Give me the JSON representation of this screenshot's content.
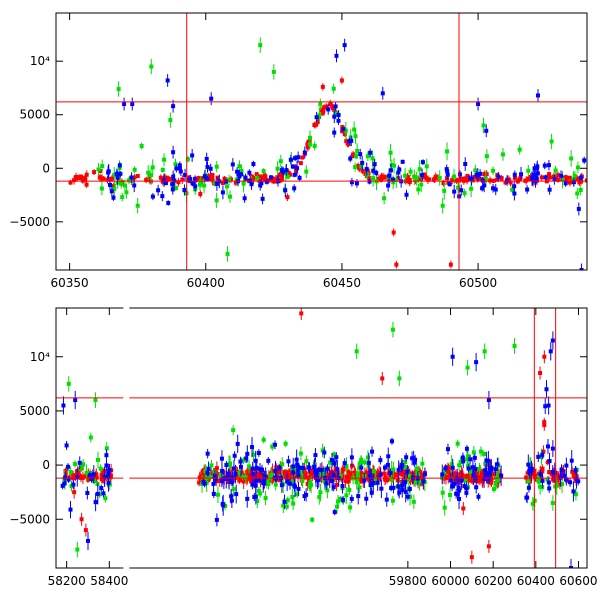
{
  "figure": {
    "description": ""
  },
  "chart_data": [
    {
      "type": "scatter",
      "panel": "top",
      "xlim": [
        60345,
        60540
      ],
      "ylim": [
        -9500,
        14500
      ],
      "xticks": [
        60350,
        60400,
        60450,
        60500
      ],
      "xtick_labels": [
        "60350",
        "60400",
        "60450",
        "60500"
      ],
      "yticks": [
        -5000,
        0,
        5000,
        10000
      ],
      "ytick_labels": [
        "−5000",
        "0",
        "5000",
        "10⁴"
      ],
      "hlines": [
        6200,
        -1200
      ],
      "vlines": [
        60393,
        60493
      ],
      "series": [
        {
          "color": "#ff0000",
          "seed": 11,
          "n": 240,
          "noise": 350,
          "errbar": 300,
          "bands": [
            [
              60348,
              60540,
              1
            ]
          ],
          "outliers": [
            [
              60469,
              -6000
            ],
            [
              60470,
              -9000
            ],
            [
              60490,
              -9000
            ],
            [
              60450,
              8200
            ],
            [
              60443,
              7600
            ],
            [
              60398,
              -2400
            ],
            [
              60430,
              -2700
            ]
          ]
        },
        {
          "color": "#00e000",
          "seed": 22,
          "n": 110,
          "noise": 1200,
          "errbar": 600,
          "bands": [
            [
              60360,
              60540,
              1
            ]
          ],
          "outliers": [
            [
              60368,
              7400
            ],
            [
              60380,
              9500
            ],
            [
              60420,
              11500
            ],
            [
              60425,
              9000
            ],
            [
              60387,
              4500
            ],
            [
              60375,
              -3500
            ],
            [
              60404,
              -3000
            ],
            [
              60408,
              -8000
            ],
            [
              60487,
              -3500
            ],
            [
              60502,
              4000
            ],
            [
              60527,
              2500
            ],
            [
              60455,
              3000
            ],
            [
              60535,
              -1000
            ]
          ]
        },
        {
          "color": "#0000ff",
          "seed": 33,
          "n": 150,
          "noise": 900,
          "errbar": 500,
          "bands": [
            [
              60362,
              60540,
              1
            ]
          ],
          "outliers": [
            [
              60370,
              6000
            ],
            [
              60373,
              6000
            ],
            [
              60386,
              8200
            ],
            [
              60388,
              5800
            ],
            [
              60402,
              6500
            ],
            [
              60448,
              10500
            ],
            [
              60451,
              11500
            ],
            [
              60465,
              7000
            ],
            [
              60500,
              6000
            ],
            [
              60503,
              3500
            ],
            [
              60522,
              6800
            ],
            [
              60537,
              -3800
            ],
            [
              60538,
              -9500
            ],
            [
              60388,
              1500
            ],
            [
              60395,
              1200
            ]
          ]
        }
      ]
    },
    {
      "type": "scatter",
      "panel": "bottom",
      "xlim": [
        58150,
        60640
      ],
      "ylim": [
        -9500,
        14500
      ],
      "xticks": [
        58200,
        58400,
        59800,
        60000,
        60200,
        60400,
        60600
      ],
      "xtick_labels": [
        "58200",
        "58400",
        "59800",
        "60000",
        "60200",
        "60400",
        "60600"
      ],
      "yticks": [
        -5000,
        0,
        5000,
        10000
      ],
      "ytick_labels": [
        "−5000",
        "0",
        "5000",
        "10⁴"
      ],
      "hlines": [
        6200,
        -1200
      ],
      "vlines": [
        60393,
        60493
      ],
      "series": [
        {
          "color": "#ff0000",
          "seed": 44,
          "n": 500,
          "noise": 500,
          "errbar": 500,
          "bands": [
            [
              58180,
              58410,
              1
            ],
            [
              58820,
              59880,
              1.4
            ],
            [
              59960,
              60240,
              1.5
            ],
            [
              60350,
              60600,
              1
            ]
          ],
          "outliers": [
            [
              58235,
              -2500
            ],
            [
              58270,
              -5000
            ],
            [
              58290,
              -6000
            ],
            [
              59300,
              14000
            ],
            [
              59680,
              8000
            ],
            [
              60060,
              -4000
            ],
            [
              60100,
              -8500
            ],
            [
              60180,
              -7500
            ],
            [
              60420,
              8500
            ],
            [
              60440,
              10000
            ]
          ]
        },
        {
          "color": "#00e000",
          "seed": 55,
          "n": 180,
          "noise": 1800,
          "errbar": 600,
          "bands": [
            [
              58180,
              58410,
              1
            ],
            [
              58820,
              59880,
              1.4
            ],
            [
              59960,
              60240,
              1.5
            ],
            [
              60350,
              60600,
              1
            ]
          ],
          "outliers": [
            [
              58210,
              7500
            ],
            [
              58250,
              -7800
            ],
            [
              58335,
              6000
            ],
            [
              59560,
              10500
            ],
            [
              59730,
              12500
            ],
            [
              59760,
              8000
            ],
            [
              60080,
              9000
            ],
            [
              60160,
              10500
            ],
            [
              60300,
              11000
            ],
            [
              60420,
              -2000
            ],
            [
              60480,
              -3500
            ]
          ]
        },
        {
          "color": "#0000ff",
          "seed": 66,
          "n": 250,
          "noise": 1300,
          "errbar": 700,
          "bands": [
            [
              58180,
              58410,
              1
            ],
            [
              58820,
              59880,
              1.4
            ],
            [
              59960,
              60240,
              1.5
            ],
            [
              60350,
              60600,
              1
            ]
          ],
          "outliers": [
            [
              58185,
              5500
            ],
            [
              58240,
              6000
            ],
            [
              58300,
              -7000
            ],
            [
              60010,
              10000
            ],
            [
              60120,
              9500
            ],
            [
              60180,
              6000
            ],
            [
              60470,
              10500
            ],
            [
              60480,
              11500
            ],
            [
              60565,
              -9500
            ],
            [
              60450,
              7000
            ],
            [
              60460,
              5500
            ]
          ]
        }
      ]
    }
  ]
}
